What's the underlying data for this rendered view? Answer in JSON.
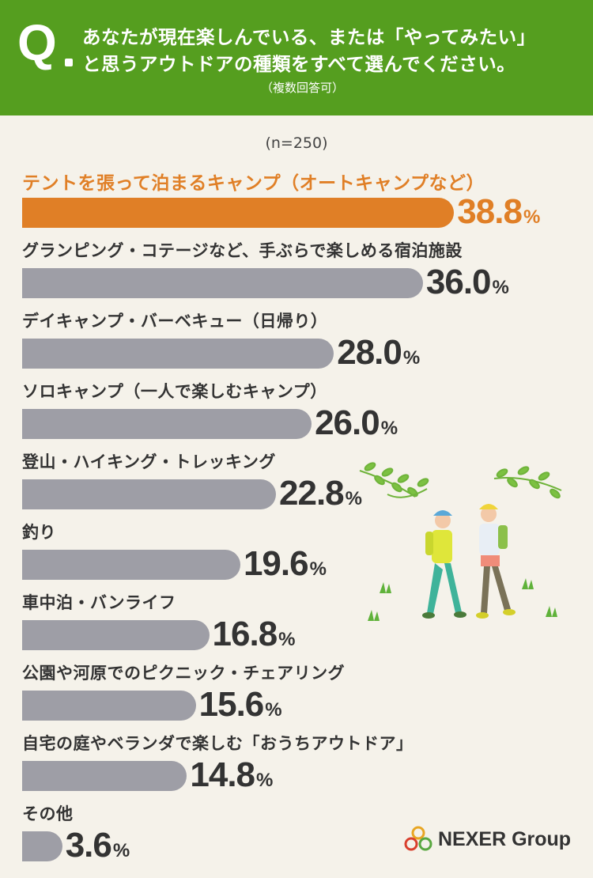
{
  "header": {
    "q_mark": "Q",
    "question_line1": "あなたが現在楽しんでいる、または「やってみたい」",
    "question_line2": "と思うアウトドアの種類をすべて選んでください。",
    "note": "（複数回答可）"
  },
  "sample_size": "(n=250)",
  "colors": {
    "header_bg": "#559e1f",
    "highlight": "#e07f26",
    "bar": "#9e9ea6",
    "background": "#f5f2ea"
  },
  "chart_data": {
    "type": "bar",
    "orientation": "horizontal",
    "unit": "%",
    "categories": [
      "テントを張って泊まるキャンプ（オートキャンプなど）",
      "グランピング・コテージなど、手ぶらで楽しめる宿泊施設",
      "デイキャンプ・バーベキュー（日帰り）",
      "ソロキャンプ（一人で楽しむキャンプ）",
      "登山・ハイキング・トレッキング",
      "釣り",
      "車中泊・バンライフ",
      "公園や河原でのピクニック・チェアリング",
      "自宅の庭やベランダで楽しむ「おうちアウトドア」",
      "その他"
    ],
    "values": [
      "38.8",
      "36.0",
      "28.0",
      "26.0",
      "22.8",
      "19.6",
      "16.8",
      "15.6",
      "14.8",
      "3.6"
    ],
    "highlight_index": 0,
    "grid": false
  },
  "logo": {
    "text": "NEXER Group",
    "icon": "nexer-rings-icon"
  },
  "illustration": {
    "icon": "hikers-illustration"
  }
}
